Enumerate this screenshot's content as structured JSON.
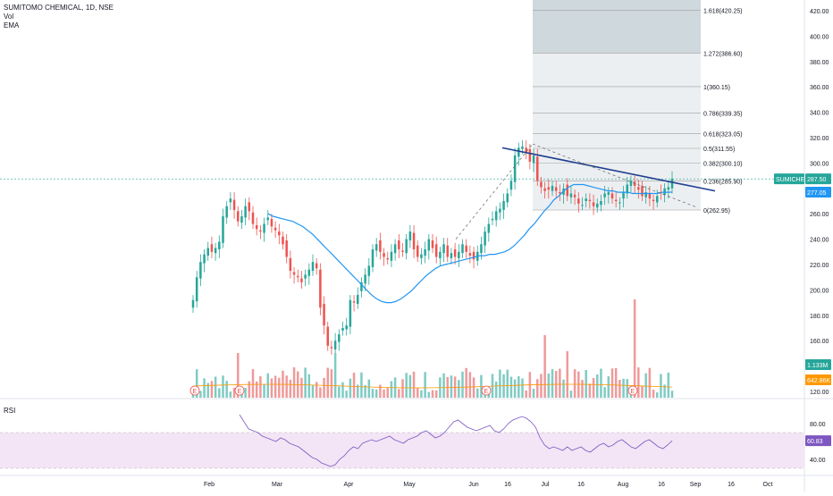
{
  "legend": {
    "symbol": "SUMITOMO CHEMICAL, 1D, NSE",
    "vol": "Vol",
    "ema": "EMA"
  },
  "price_axis_ticks": [
    "420.00",
    "400.00",
    "380.00",
    "360.00",
    "340.00",
    "320.00",
    "300.00",
    "280.00",
    "260.00",
    "240.00",
    "220.00",
    "200.00",
    "180.00",
    "160.00",
    "140.00",
    "120.00"
  ],
  "rsi_axis_ticks": [
    "80.00",
    "40.00"
  ],
  "time_axis_ticks": [
    "Feb",
    "Mar",
    "Apr",
    "May",
    "Jun",
    "16",
    "Jul",
    "16",
    "Aug",
    "16",
    "Sep",
    "16",
    "Oct"
  ],
  "badges": {
    "symbol_badge": "SUMICHEM",
    "price": "287.50",
    "ema_value": "277.05",
    "vol_value": "1.133M",
    "vol_ma_value": "642.86K",
    "rsi_value": "60.83"
  },
  "fib_levels": [
    {
      "label": "1.618(420.25)",
      "price": 420.25
    },
    {
      "label": "1.272(386.60)",
      "price": 386.6
    },
    {
      "label": "1(360.15)",
      "price": 360.15
    },
    {
      "label": "0.786(339.35)",
      "price": 339.35
    },
    {
      "label": "0.618(323.05)",
      "price": 323.05
    },
    {
      "label": "0.5(311.55)",
      "price": 311.55
    },
    {
      "label": "0.382(300.10)",
      "price": 300.1
    },
    {
      "label": "0.236(285.90)",
      "price": 285.9
    },
    {
      "label": "0(262.95)",
      "price": 262.95
    }
  ],
  "rsi_label": "RSI",
  "earnings_marker": "E",
  "chart_data": {
    "type": "candlestick",
    "title": "SUMITOMO CHEMICAL, 1D, NSE",
    "ylim": [
      120,
      425
    ],
    "candles_close": [
      192,
      210,
      222,
      228,
      233,
      230,
      233,
      238,
      258,
      266,
      272,
      263,
      254,
      258,
      266,
      262,
      252,
      248,
      246,
      252,
      257,
      250,
      247,
      243,
      236,
      226,
      215,
      212,
      210,
      206,
      212,
      216,
      222,
      217,
      186,
      172,
      156,
      154,
      160,
      165,
      170,
      172,
      192,
      190,
      196,
      206,
      212,
      219,
      232,
      236,
      230,
      226,
      224,
      230,
      236,
      232,
      230,
      240,
      246,
      232,
      226,
      228,
      232,
      240,
      233,
      226,
      230,
      236,
      226,
      229,
      226,
      230,
      236,
      230,
      227,
      224,
      230,
      236,
      246,
      252,
      256,
      262,
      264,
      270,
      276,
      286,
      306,
      312,
      313,
      308,
      301,
      306,
      286,
      281,
      278,
      279,
      282,
      278,
      276,
      280,
      274,
      276,
      273,
      268,
      267,
      272,
      270,
      266,
      268,
      270,
      276,
      277,
      272,
      270,
      269,
      277,
      283,
      286,
      282,
      279,
      274,
      277,
      272,
      270,
      274,
      276,
      280,
      281,
      287.5
    ],
    "ema": [
      260,
      258,
      257,
      256,
      255,
      254,
      252,
      250,
      247,
      244,
      240,
      236,
      232,
      228,
      224,
      220,
      216,
      212,
      208,
      204,
      200,
      196,
      193,
      191,
      190,
      190,
      191,
      193,
      196,
      199,
      203,
      207,
      211,
      214,
      217,
      219,
      220,
      221,
      222,
      223,
      224,
      225,
      226,
      227,
      227,
      228,
      228,
      229,
      230,
      232,
      235,
      239,
      243,
      248,
      252,
      257,
      262,
      266,
      271,
      274,
      278,
      281,
      283,
      283,
      283,
      282,
      281,
      280,
      279,
      278,
      278,
      277,
      277,
      277,
      276,
      276,
      276,
      276,
      276,
      276,
      277,
      277,
      277.05
    ],
    "rsi": [
      90,
      82,
      74,
      72,
      70,
      66,
      64,
      62,
      60,
      64,
      62,
      58,
      56,
      54,
      50,
      46,
      42,
      40,
      36,
      34,
      32,
      34,
      40,
      44,
      50,
      54,
      52,
      58,
      60,
      62,
      60,
      62,
      64,
      66,
      62,
      60,
      58,
      62,
      64,
      66,
      70,
      72,
      68,
      64,
      66,
      70,
      76,
      82,
      84,
      80,
      76,
      74,
      72,
      74,
      76,
      78,
      72,
      70,
      74,
      80,
      84,
      86,
      88,
      86,
      82,
      76,
      64,
      56,
      52,
      54,
      52,
      50,
      54,
      50,
      52,
      54,
      50,
      48,
      52,
      56,
      58,
      54,
      56,
      60,
      62,
      58,
      54,
      52,
      56,
      60,
      62,
      58,
      54,
      52,
      56,
      60.83
    ]
  }
}
